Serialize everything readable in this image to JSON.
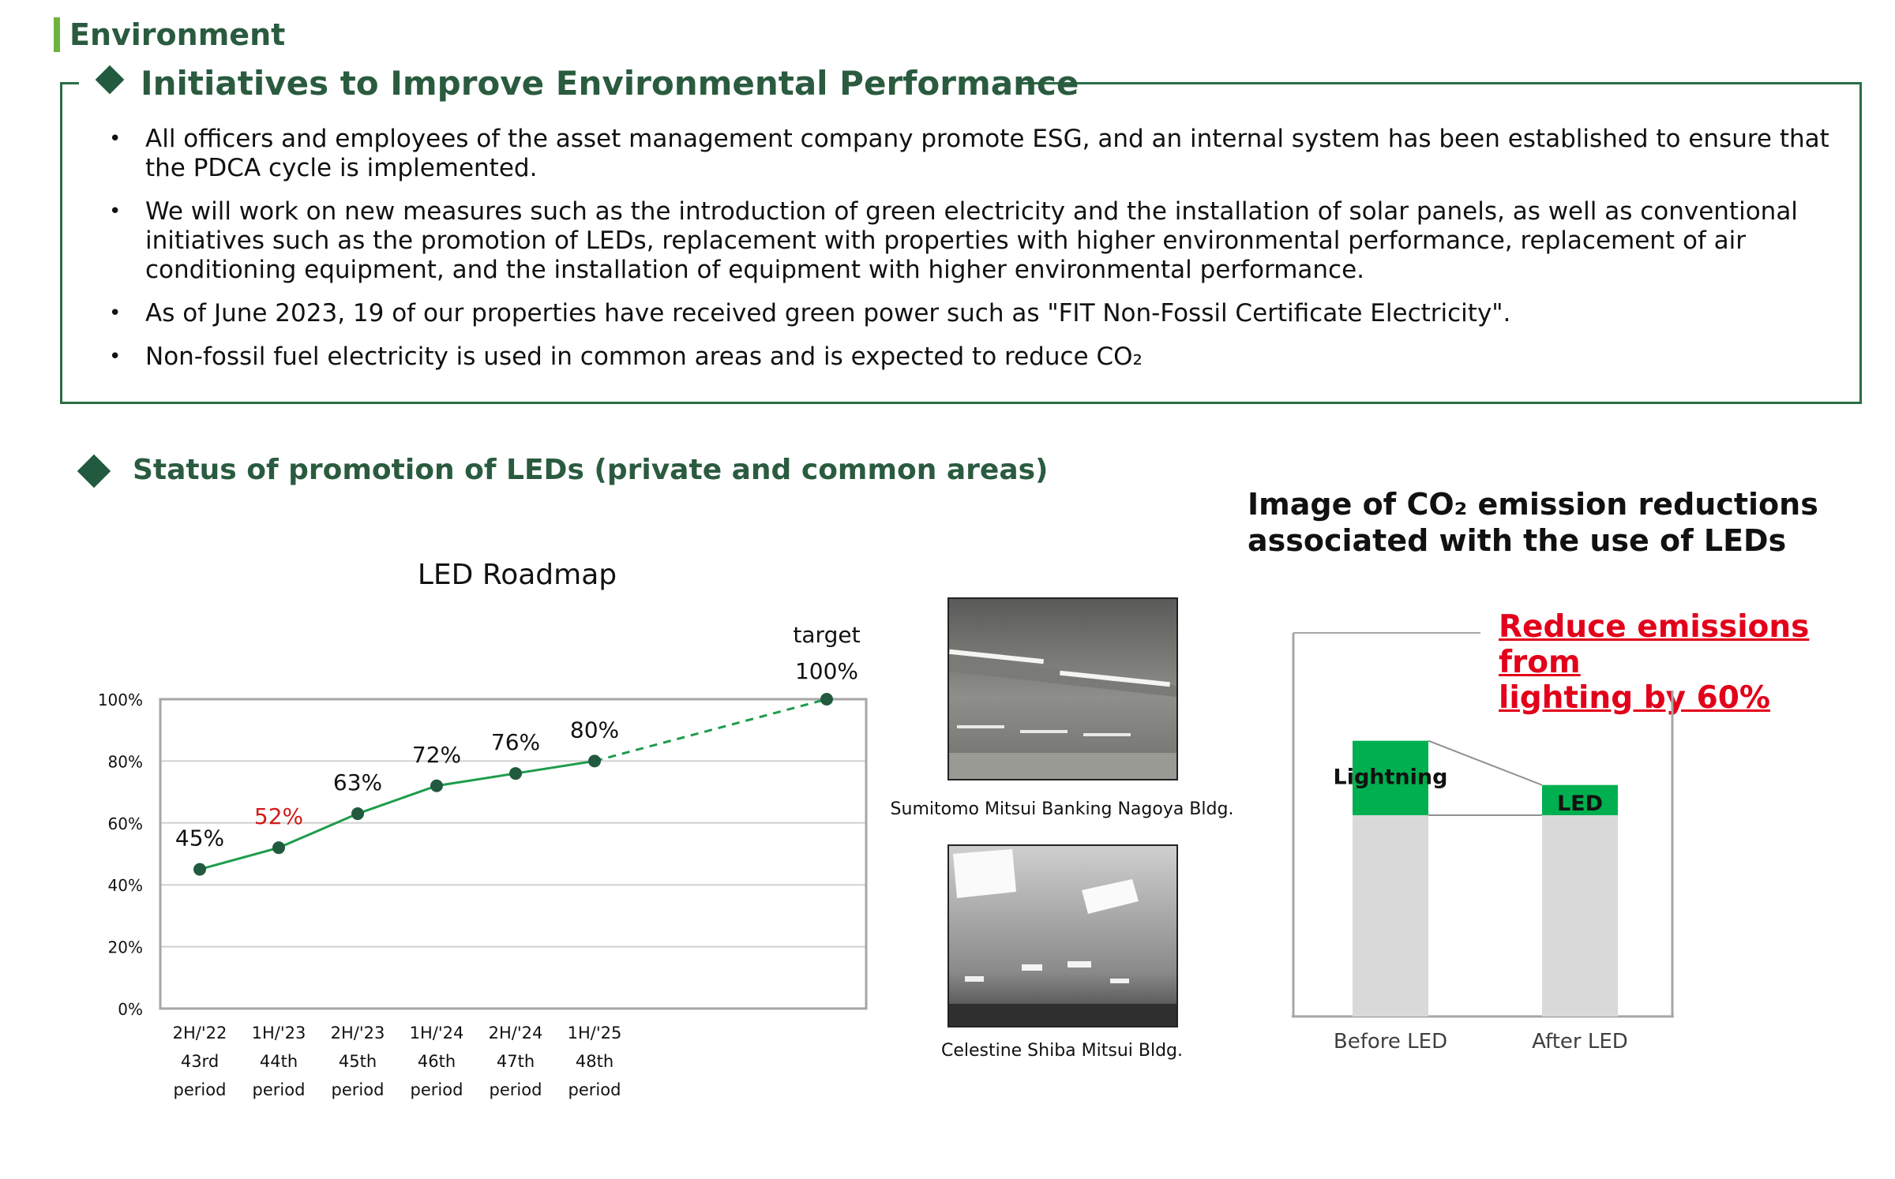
{
  "section": {
    "title": "Environment"
  },
  "initiatives": {
    "title": "Initiatives to Improve Environmental Performance",
    "bullets": [
      "All officers and employees of the asset management company promote ESG, and an internal system has been established to ensure that the PDCA cycle is implemented.",
      "We will work on new measures such as the introduction of green electricity and the installation of solar panels, as well as conventional initiatives such as the promotion of LEDs, replacement with properties with higher environmental performance, replacement of air conditioning equipment, and the installation of equipment with higher environmental performance.",
      "As of June 2023, 19 of our properties have received green power such as \"FIT Non-Fossil Certificate Electricity\".",
      "Non-fossil fuel electricity is used in common areas and is expected to reduce CO₂"
    ]
  },
  "led_section": {
    "title": "Status of promotion of LEDs (private and common areas)"
  },
  "photos": [
    {
      "caption": "Sumitomo Mitsui Banking Nagoya Bldg."
    },
    {
      "caption": "Celestine Shiba Mitsui Bldg."
    }
  ],
  "co2": {
    "title_line1": "Image of CO₂ emission reductions",
    "title_line2": "associated with the use of LEDs",
    "reduce_line1": "Reduce emissions from",
    "reduce_line2": "lighting by 60%"
  },
  "colors": {
    "primary_green": "#215a3e",
    "accent_green": "#00b050",
    "line_green": "#1e9c4b",
    "highlight_red": "#d11a1a",
    "bar_gray": "#d9d9d9",
    "section_bar": "#6db33f"
  },
  "chart_data": [
    {
      "type": "line",
      "title": "LED Roadmap",
      "categories": [
        [
          "2H/'22",
          "43rd",
          "period"
        ],
        [
          "1H/'23",
          "44th",
          "period"
        ],
        [
          "2H/'23",
          "45th",
          "period"
        ],
        [
          "1H/'24",
          "46th",
          "period"
        ],
        [
          "2H/'24",
          "47th",
          "period"
        ],
        [
          "1H/'25",
          "48th",
          "period"
        ]
      ],
      "values": [
        45,
        52,
        63,
        72,
        76,
        80
      ],
      "data_labels": [
        "45%",
        "52%",
        "63%",
        "72%",
        "76%",
        "80%"
      ],
      "highlight_index": 1,
      "target": {
        "label": "target",
        "value": 100,
        "value_label": "100%"
      },
      "ylim": [
        0,
        100
      ],
      "yticks": [
        "0%",
        "20%",
        "40%",
        "60%",
        "80%",
        "100%"
      ],
      "ytick_values": [
        0,
        20,
        40,
        60,
        80,
        100
      ],
      "grid": true
    },
    {
      "type": "bar",
      "title": "",
      "categories": [
        "Before LED",
        "After LED"
      ],
      "series": [
        {
          "name": "",
          "values": [
            100,
            100
          ]
        },
        {
          "name": "",
          "values": [
            37,
            15
          ]
        }
      ],
      "segment_labels": [
        "Lightning",
        "LED"
      ]
    }
  ]
}
